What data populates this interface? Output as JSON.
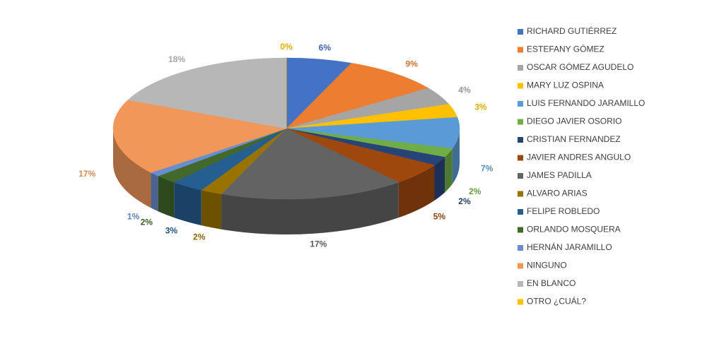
{
  "chart_data": {
    "type": "pie3d",
    "categories": [
      "RICHARD GUTIÉRREZ",
      "ESTEFANY GÓMEZ",
      "OSCAR GÓMEZ AGUDELO",
      "MARY LUZ OSPINA",
      "LUIS FERNANDO JARAMILLO",
      "DIEGO JAVIER OSORIO",
      "CRISTIAN FERNANDEZ",
      "JAVIER ANDRES ANGULO",
      "JAMES PADILLA",
      "ALVARO ARIAS",
      "FELIPE ROBLEDO",
      "ORLANDO MOSQUERA",
      "HERNÁN JARAMILLO",
      "NINGUNO",
      "EN BLANCO",
      "OTRO ¿CUÁL?"
    ],
    "values": [
      6,
      9,
      4,
      3,
      7,
      2,
      2,
      5,
      17,
      2,
      3,
      2,
      1,
      17,
      18,
      0
    ],
    "value_labels": [
      "6%",
      "9%",
      "4%",
      "3%",
      "7%",
      "2%",
      "2%",
      "5%",
      "17%",
      "2%",
      "3%",
      "2%",
      "1%",
      "17%",
      "18%",
      "0%"
    ],
    "colors": [
      "#4472c4",
      "#ed7d31",
      "#a5a5a5",
      "#ffc000",
      "#5b9bd5",
      "#70ad47",
      "#264478",
      "#9e480e",
      "#636363",
      "#997300",
      "#255e91",
      "#43682b",
      "#698ed0",
      "#f1975a",
      "#b7b7b7",
      "#ffc000"
    ],
    "legend": "right"
  }
}
